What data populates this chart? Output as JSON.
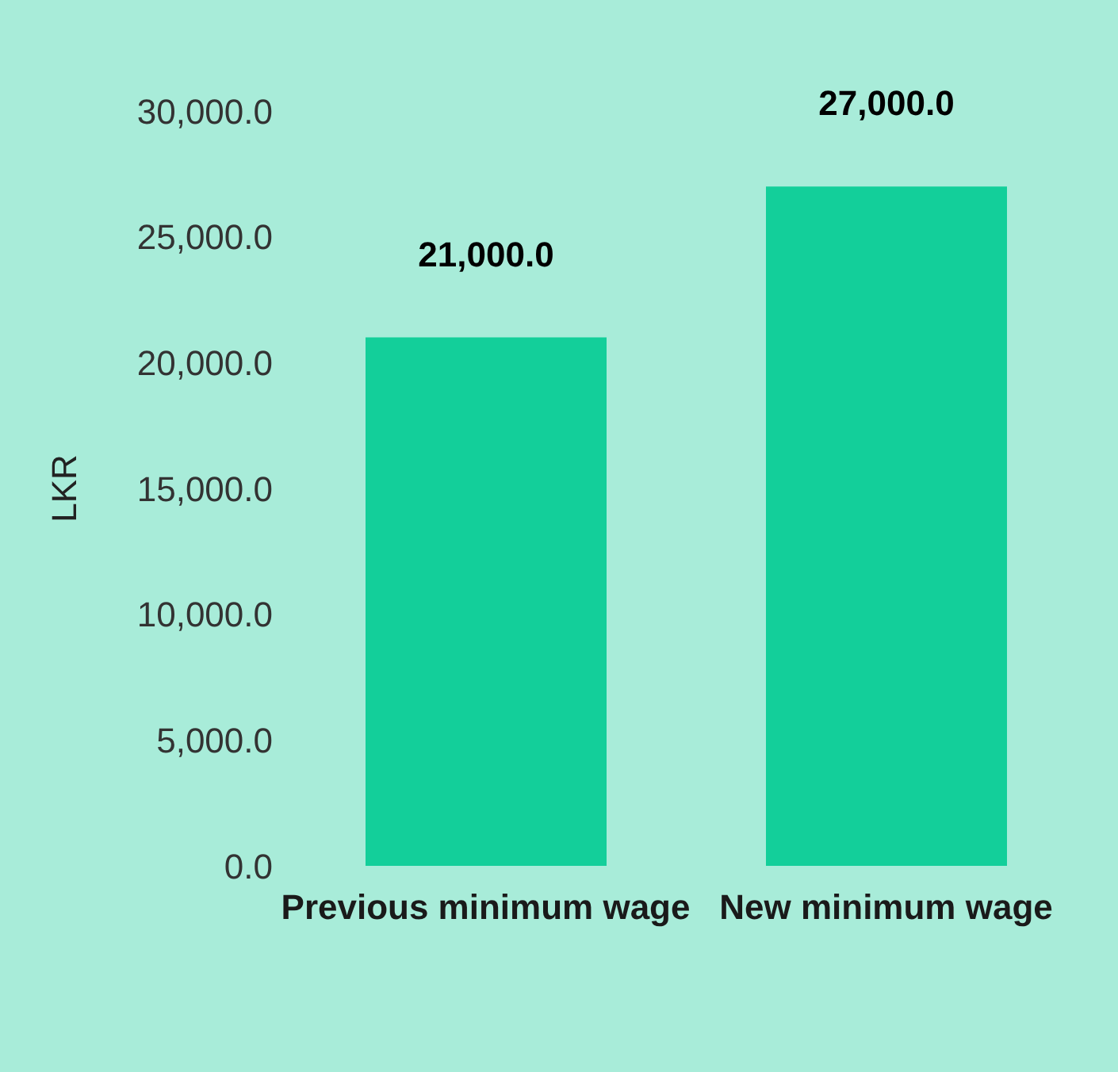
{
  "chart_data": {
    "type": "bar",
    "ylabel": "LKR",
    "categories": [
      "Previous minimum wage",
      "New minimum wage"
    ],
    "values": [
      21000,
      27000
    ],
    "color": "#13cf9a",
    "value_labels": [
      "21,000.0",
      "27,000.0"
    ],
    "ylim": [
      0,
      30000
    ],
    "yticks": [
      {
        "value": 0,
        "label": "0.0"
      },
      {
        "value": 5000,
        "label": "5,000.0"
      },
      {
        "value": 10000,
        "label": "10,000.0"
      },
      {
        "value": 15000,
        "label": "15,000.0"
      },
      {
        "value": 20000,
        "label": "20,000.0"
      },
      {
        "value": 25000,
        "label": "25,000.0"
      },
      {
        "value": 30000,
        "label": "30,000.0"
      }
    ],
    "grid": false,
    "legend": false
  }
}
